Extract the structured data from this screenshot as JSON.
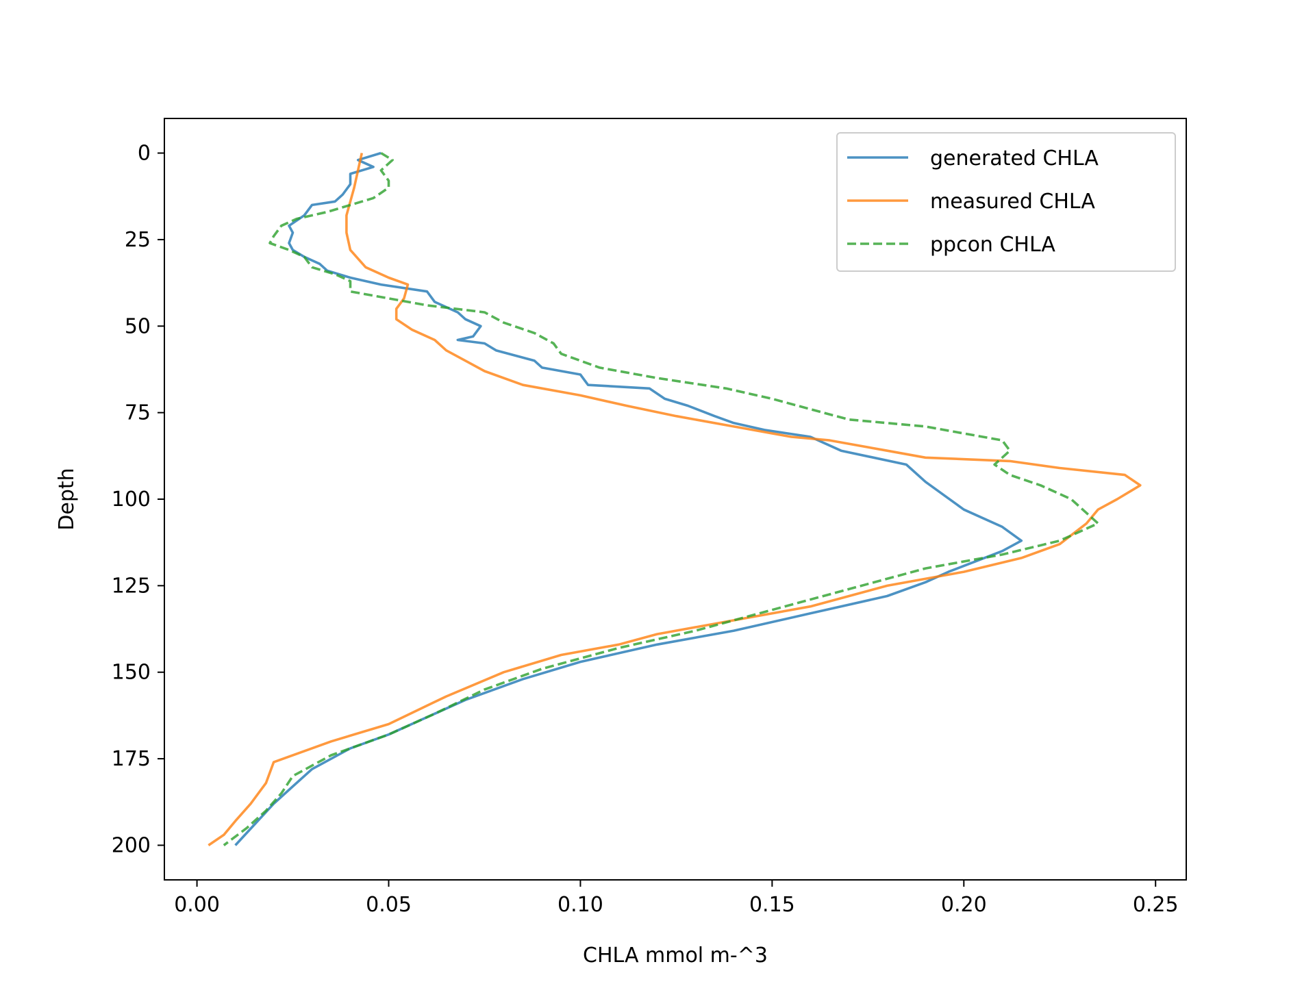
{
  "chart_data": {
    "type": "line",
    "title": "",
    "xlabel": "CHLA mmol m-^3",
    "ylabel": "Depth",
    "xlim": [
      -0.0085,
      0.258
    ],
    "ylim": [
      210,
      -10
    ],
    "y_inverted": true,
    "grid": false,
    "legend_position": "top-right",
    "x_ticks": [
      0.0,
      0.05,
      0.1,
      0.15,
      0.2,
      0.25
    ],
    "x_tick_labels": [
      "0.00",
      "0.05",
      "0.10",
      "0.15",
      "0.20",
      "0.25"
    ],
    "y_ticks": [
      0,
      25,
      50,
      75,
      100,
      125,
      150,
      175,
      200
    ],
    "y_tick_labels": [
      "0",
      "25",
      "50",
      "75",
      "100",
      "125",
      "150",
      "175",
      "200"
    ],
    "series": [
      {
        "name": "generated CHLA",
        "color": "#1f77b4",
        "style": "solid",
        "points": [
          [
            0.048,
            0
          ],
          [
            0.042,
            2
          ],
          [
            0.046,
            4
          ],
          [
            0.04,
            6
          ],
          [
            0.04,
            9
          ],
          [
            0.038,
            12
          ],
          [
            0.036,
            14
          ],
          [
            0.03,
            15
          ],
          [
            0.028,
            18
          ],
          [
            0.024,
            21
          ],
          [
            0.025,
            23
          ],
          [
            0.024,
            26
          ],
          [
            0.025,
            28
          ],
          [
            0.028,
            30
          ],
          [
            0.032,
            32
          ],
          [
            0.034,
            34
          ],
          [
            0.04,
            36
          ],
          [
            0.048,
            38
          ],
          [
            0.06,
            40
          ],
          [
            0.062,
            43
          ],
          [
            0.068,
            46
          ],
          [
            0.07,
            48
          ],
          [
            0.074,
            50
          ],
          [
            0.072,
            53
          ],
          [
            0.068,
            54
          ],
          [
            0.075,
            55
          ],
          [
            0.078,
            57
          ],
          [
            0.088,
            60
          ],
          [
            0.09,
            62
          ],
          [
            0.1,
            64
          ],
          [
            0.102,
            67
          ],
          [
            0.118,
            68
          ],
          [
            0.122,
            71
          ],
          [
            0.128,
            73
          ],
          [
            0.135,
            76
          ],
          [
            0.14,
            78
          ],
          [
            0.148,
            80
          ],
          [
            0.16,
            82
          ],
          [
            0.168,
            86
          ],
          [
            0.185,
            90
          ],
          [
            0.19,
            95
          ],
          [
            0.195,
            99
          ],
          [
            0.2,
            103
          ],
          [
            0.21,
            108
          ],
          [
            0.215,
            112
          ],
          [
            0.21,
            115
          ],
          [
            0.196,
            121
          ],
          [
            0.19,
            124
          ],
          [
            0.18,
            128
          ],
          [
            0.16,
            133
          ],
          [
            0.14,
            138
          ],
          [
            0.12,
            142
          ],
          [
            0.1,
            147
          ],
          [
            0.085,
            152
          ],
          [
            0.07,
            158
          ],
          [
            0.06,
            163
          ],
          [
            0.05,
            168
          ],
          [
            0.04,
            172
          ],
          [
            0.03,
            178
          ],
          [
            0.025,
            183
          ],
          [
            0.02,
            188
          ],
          [
            0.015,
            194
          ],
          [
            0.01,
            200
          ]
        ]
      },
      {
        "name": "measured CHLA",
        "color": "#ff7f0e",
        "style": "solid",
        "points": [
          [
            0.043,
            0
          ],
          [
            0.042,
            5
          ],
          [
            0.041,
            10
          ],
          [
            0.04,
            14
          ],
          [
            0.039,
            18
          ],
          [
            0.039,
            23
          ],
          [
            0.04,
            28
          ],
          [
            0.044,
            33
          ],
          [
            0.05,
            36
          ],
          [
            0.055,
            38
          ],
          [
            0.054,
            42
          ],
          [
            0.052,
            45
          ],
          [
            0.052,
            48
          ],
          [
            0.056,
            51
          ],
          [
            0.062,
            54
          ],
          [
            0.065,
            57
          ],
          [
            0.07,
            60
          ],
          [
            0.075,
            63
          ],
          [
            0.085,
            67
          ],
          [
            0.1,
            70
          ],
          [
            0.112,
            73
          ],
          [
            0.125,
            76
          ],
          [
            0.14,
            79
          ],
          [
            0.155,
            82
          ],
          [
            0.165,
            83
          ],
          [
            0.18,
            86
          ],
          [
            0.19,
            88
          ],
          [
            0.212,
            89
          ],
          [
            0.225,
            91
          ],
          [
            0.242,
            93
          ],
          [
            0.246,
            96
          ],
          [
            0.24,
            100
          ],
          [
            0.235,
            103
          ],
          [
            0.232,
            107
          ],
          [
            0.225,
            113
          ],
          [
            0.215,
            117
          ],
          [
            0.2,
            121
          ],
          [
            0.18,
            125
          ],
          [
            0.16,
            131
          ],
          [
            0.14,
            135
          ],
          [
            0.12,
            139
          ],
          [
            0.11,
            142
          ],
          [
            0.095,
            145
          ],
          [
            0.08,
            150
          ],
          [
            0.065,
            157
          ],
          [
            0.05,
            165
          ],
          [
            0.035,
            170
          ],
          [
            0.02,
            176
          ],
          [
            0.018,
            182
          ],
          [
            0.014,
            188
          ],
          [
            0.01,
            193
          ],
          [
            0.007,
            197
          ],
          [
            0.003,
            200
          ]
        ]
      },
      {
        "name": "ppcon CHLA",
        "color": "#2ca02c",
        "style": "dashed",
        "points": [
          [
            0.048,
            0
          ],
          [
            0.051,
            2
          ],
          [
            0.048,
            5
          ],
          [
            0.05,
            8
          ],
          [
            0.05,
            10
          ],
          [
            0.046,
            13
          ],
          [
            0.04,
            15
          ],
          [
            0.034,
            17
          ],
          [
            0.026,
            19
          ],
          [
            0.022,
            21
          ],
          [
            0.02,
            24
          ],
          [
            0.019,
            26
          ],
          [
            0.024,
            28
          ],
          [
            0.028,
            30
          ],
          [
            0.03,
            33
          ],
          [
            0.036,
            35
          ],
          [
            0.04,
            37
          ],
          [
            0.04,
            40
          ],
          [
            0.05,
            42
          ],
          [
            0.06,
            44
          ],
          [
            0.075,
            46
          ],
          [
            0.08,
            49
          ],
          [
            0.088,
            52
          ],
          [
            0.093,
            55
          ],
          [
            0.095,
            58
          ],
          [
            0.105,
            62
          ],
          [
            0.12,
            65
          ],
          [
            0.138,
            68
          ],
          [
            0.15,
            71
          ],
          [
            0.16,
            74
          ],
          [
            0.17,
            77
          ],
          [
            0.19,
            79
          ],
          [
            0.2,
            81
          ],
          [
            0.21,
            83
          ],
          [
            0.212,
            86
          ],
          [
            0.208,
            90
          ],
          [
            0.212,
            93
          ],
          [
            0.22,
            96
          ],
          [
            0.228,
            100
          ],
          [
            0.232,
            104
          ],
          [
            0.235,
            107
          ],
          [
            0.225,
            112
          ],
          [
            0.21,
            116
          ],
          [
            0.19,
            120
          ],
          [
            0.17,
            126
          ],
          [
            0.15,
            132
          ],
          [
            0.13,
            138
          ],
          [
            0.11,
            143
          ],
          [
            0.09,
            149
          ],
          [
            0.075,
            155
          ],
          [
            0.062,
            162
          ],
          [
            0.05,
            168
          ],
          [
            0.035,
            174
          ],
          [
            0.025,
            180
          ],
          [
            0.022,
            185
          ],
          [
            0.018,
            190
          ],
          [
            0.013,
            195
          ],
          [
            0.007,
            200
          ]
        ]
      }
    ]
  }
}
